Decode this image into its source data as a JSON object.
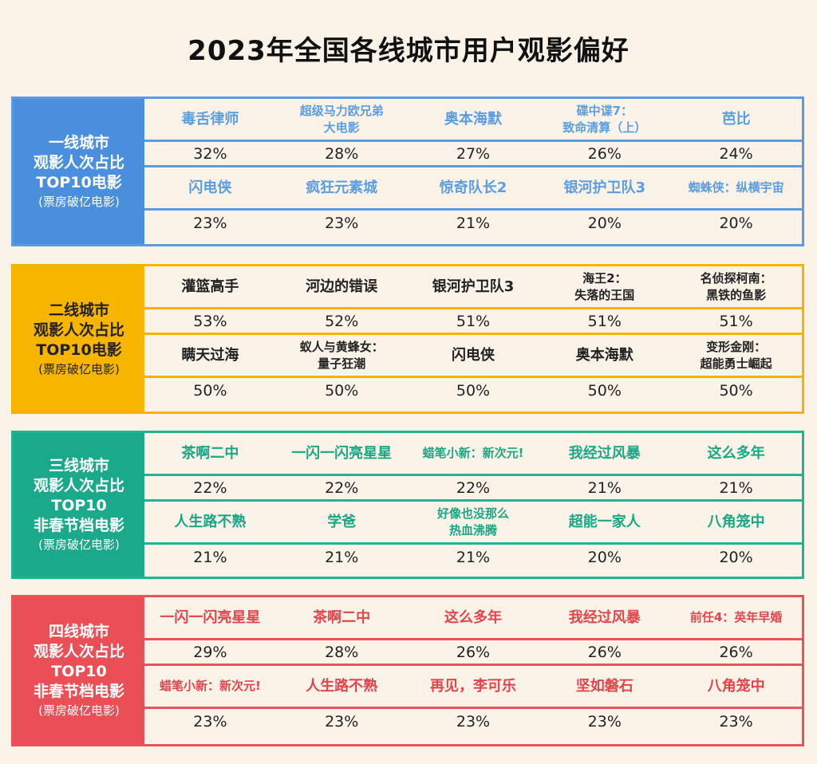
{
  "title": "2023年全国各线城市用户观影偏好",
  "tiers": [
    {
      "label_lines": [
        "一线城市",
        "观影人次占比",
        "TOP10电影"
      ],
      "note": "(票房破亿电影)",
      "rows": [
        {
          "movies": [
            "毒舌律师",
            "超级马力欧兄弟\n大电影",
            "奥本海默",
            "碟中谍7：\n致命清算（上）",
            "芭比"
          ],
          "pcts": [
            "32%",
            "28%",
            "27%",
            "26%",
            "24%"
          ]
        },
        {
          "movies": [
            "闪电侠",
            "疯狂元素城",
            "惊奇队长2",
            "银河护卫队3",
            "蜘蛛侠：纵横宇宙"
          ],
          "pcts": [
            "23%",
            "23%",
            "21%",
            "20%",
            "20%"
          ]
        }
      ]
    },
    {
      "label_lines": [
        "二线城市",
        "观影人次占比",
        "TOP10电影"
      ],
      "note": "(票房破亿电影)",
      "rows": [
        {
          "movies": [
            "灌篮高手",
            "河边的错误",
            "银河护卫队3",
            "海王2：\n失落的王国",
            "名侦探柯南：\n黑铁的鱼影"
          ],
          "pcts": [
            "53%",
            "52%",
            "51%",
            "51%",
            "51%"
          ]
        },
        {
          "movies": [
            "瞒天过海",
            "蚁人与黄蜂女：\n量子狂潮",
            "闪电侠",
            "奥本海默",
            "变形金刚：\n超能勇士崛起"
          ],
          "pcts": [
            "50%",
            "50%",
            "50%",
            "50%",
            "50%"
          ]
        }
      ]
    },
    {
      "label_lines": [
        "三线城市",
        "观影人次占比",
        "TOP10",
        "非春节档电影"
      ],
      "note": "(票房破亿电影)",
      "rows": [
        {
          "movies": [
            "茶啊二中",
            "一闪一闪亮星星",
            "蜡笔小新：新次元!",
            "我经过风暴",
            "这么多年"
          ],
          "pcts": [
            "22%",
            "22%",
            "22%",
            "21%",
            "21%"
          ]
        },
        {
          "movies": [
            "人生路不熟",
            "学爸",
            "好像也没那么\n热血沸腾",
            "超能一家人",
            "八角笼中"
          ],
          "pcts": [
            "21%",
            "21%",
            "21%",
            "20%",
            "20%"
          ]
        }
      ]
    },
    {
      "label_lines": [
        "四线城市",
        "观影人次占比",
        "TOP10",
        "非春节档电影"
      ],
      "note": "(票房破亿电影)",
      "rows": [
        {
          "movies": [
            "一闪一闪亮星星",
            "茶啊二中",
            "这么多年",
            "我经过风暴",
            "前任4：英年早婚"
          ],
          "pcts": [
            "29%",
            "28%",
            "26%",
            "26%",
            "26%"
          ]
        },
        {
          "movies": [
            "蜡笔小新：新次元!",
            "人生路不熟",
            "再见，李可乐",
            "坚如磐石",
            "八角笼中"
          ],
          "pcts": [
            "23%",
            "23%",
            "23%",
            "23%",
            "23%"
          ]
        }
      ]
    }
  ]
}
